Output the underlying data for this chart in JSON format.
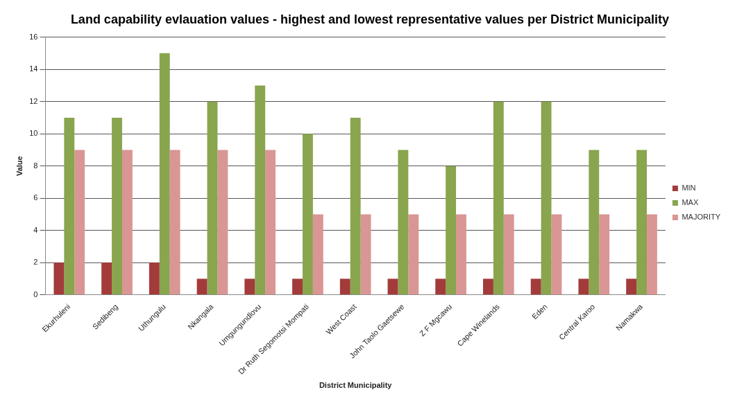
{
  "chart_data": {
    "type": "bar",
    "title": "Land capability evlauation values - highest and lowest representative values per District Municipality",
    "xlabel": "District Municipality",
    "ylabel": "Value",
    "categories": [
      "Ekurhuleni",
      "Sedibeng",
      "Uthungulu",
      "Nkangala",
      "Umgungundlovu",
      "Dr Ruth Segomotsi Mompati",
      "West Coast",
      "John Taolo Gaetsewe",
      "Z F Mgcawu",
      "Cape Winelands",
      "Eden",
      "Central Karoo",
      "Namakwa"
    ],
    "series": [
      {
        "name": "MIN",
        "color": "#a33b3b",
        "values": [
          2,
          2,
          2,
          1,
          1,
          1,
          1,
          1,
          1,
          1,
          1,
          1,
          1
        ]
      },
      {
        "name": "MAX",
        "color": "#89a54e",
        "values": [
          11,
          11,
          15,
          12,
          13,
          10,
          11,
          9,
          8,
          12,
          12,
          9,
          9
        ]
      },
      {
        "name": "MAJORITY",
        "color": "#d99694",
        "values": [
          9,
          9,
          9,
          9,
          9,
          5,
          5,
          5,
          5,
          5,
          5,
          5,
          5
        ]
      }
    ],
    "ylim": [
      0,
      16
    ],
    "yticks": [
      0,
      2,
      4,
      6,
      8,
      10,
      12,
      14,
      16
    ],
    "grid": "y",
    "legend": "right"
  }
}
